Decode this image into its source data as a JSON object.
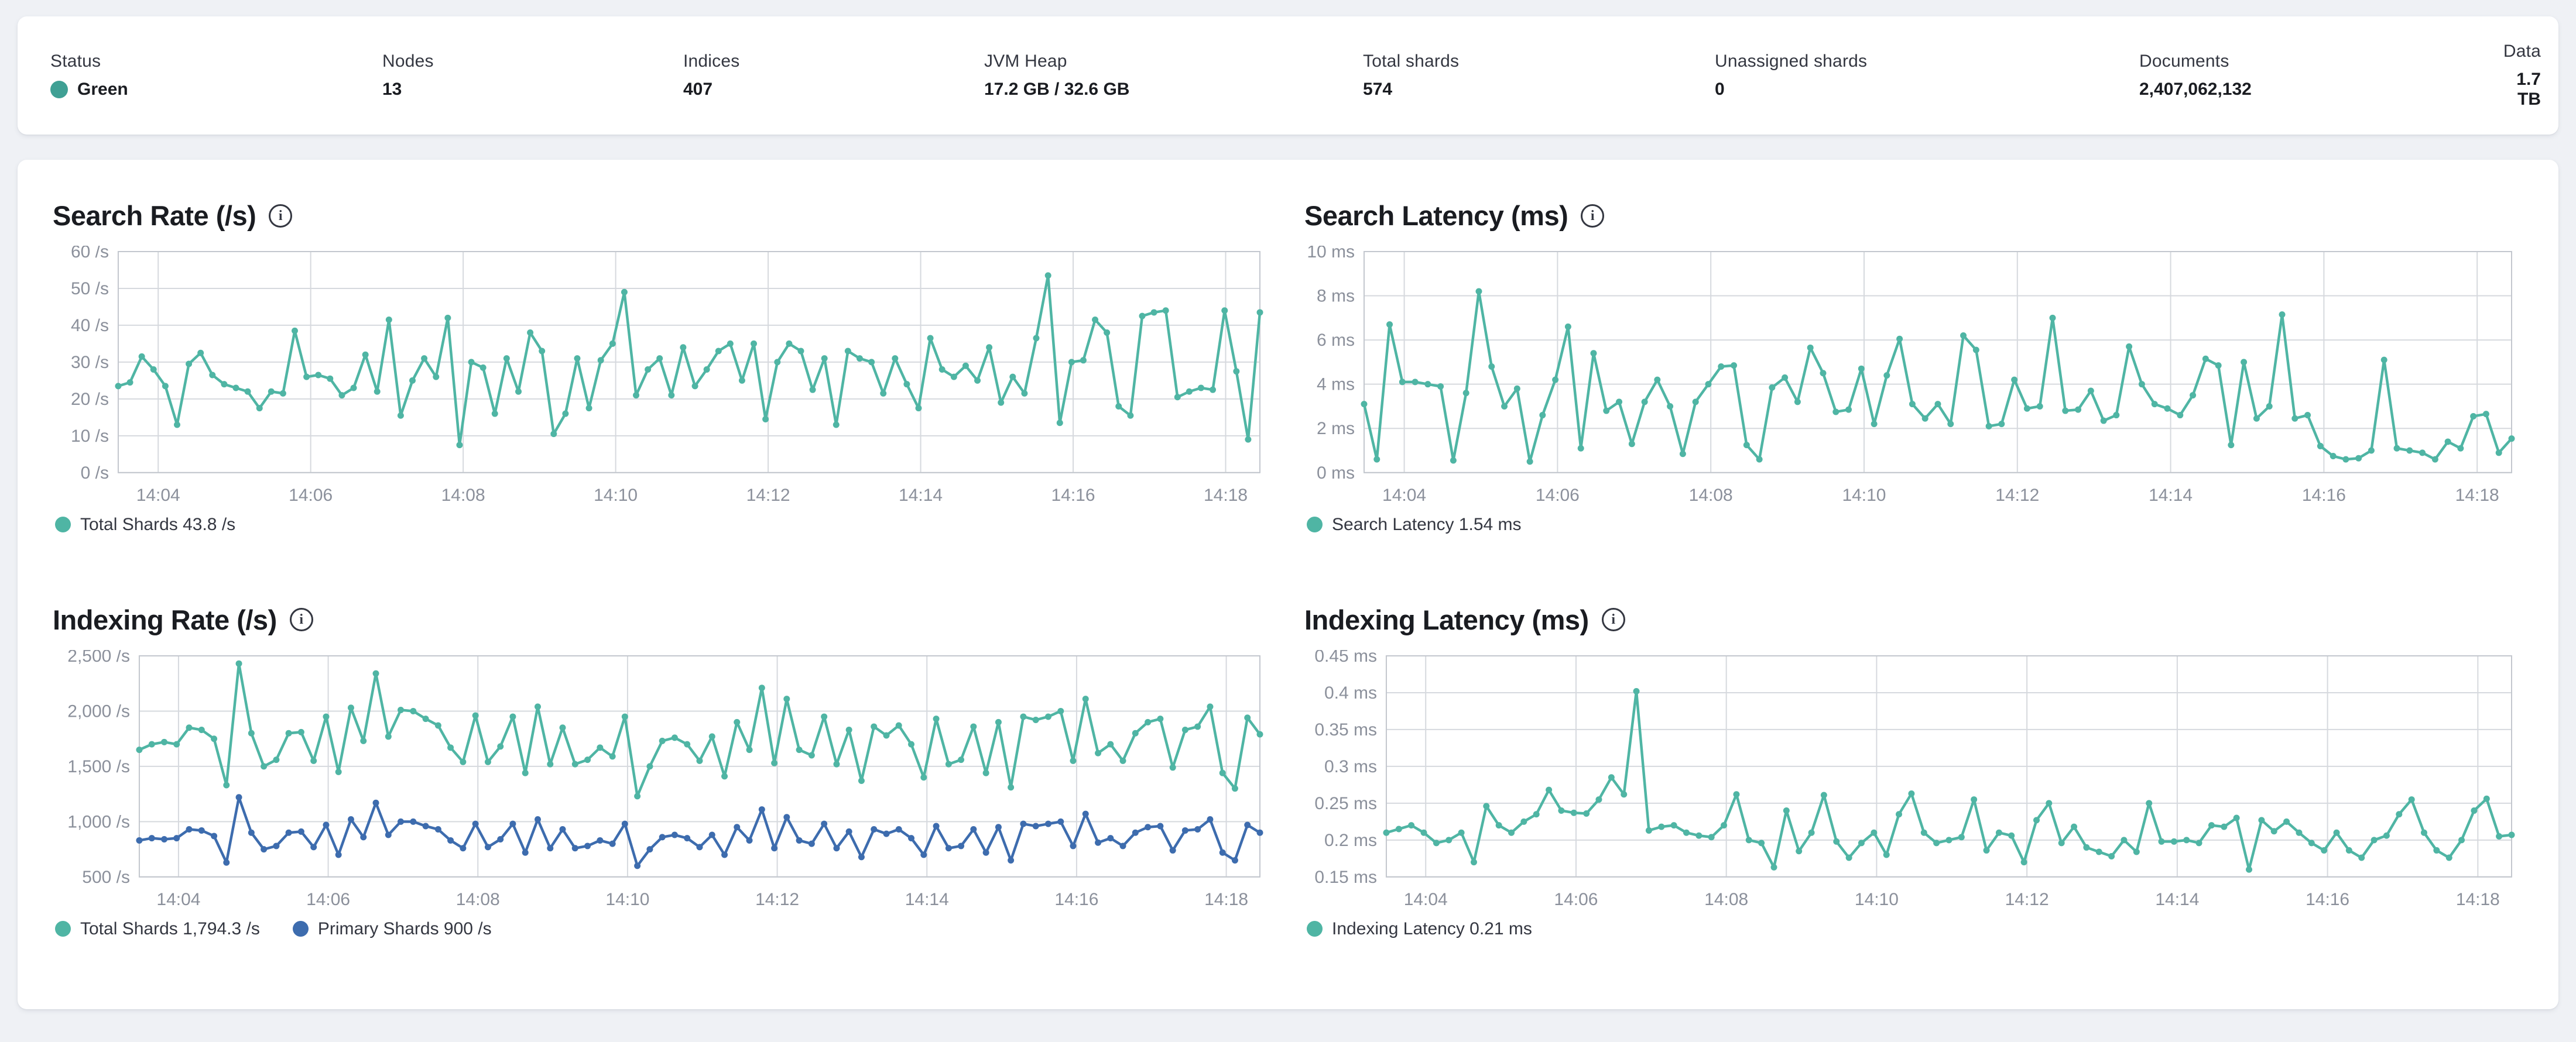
{
  "status_bar": {
    "items": [
      {
        "label": "Status",
        "value": "Green",
        "dot_color": "#3fa094"
      },
      {
        "label": "Nodes",
        "value": "13"
      },
      {
        "label": "Indices",
        "value": "407"
      },
      {
        "label": "JVM Heap",
        "value": "17.2 GB / 32.6 GB"
      },
      {
        "label": "Total shards",
        "value": "574"
      },
      {
        "label": "Unassigned shards",
        "value": "0"
      },
      {
        "label": "Documents",
        "value": "2,407,062,132"
      },
      {
        "label": "Data",
        "value": "1.7 TB"
      }
    ]
  },
  "icons": {
    "info_glyph": "i"
  },
  "colors": {
    "teal": "#4fb5a4",
    "blue": "#3d6cae",
    "grid": "#d6d9de",
    "tick_text": "#8b909b"
  },
  "chart_data": [
    {
      "type": "line",
      "title": "Search Rate (/s)",
      "grid": true,
      "legend_position": "bottom",
      "ylim": [
        0,
        60
      ],
      "y_ticks": [
        {
          "v": 0,
          "label": "0 /s"
        },
        {
          "v": 10,
          "label": "10 /s"
        },
        {
          "v": 20,
          "label": "20 /s"
        },
        {
          "v": 30,
          "label": "30 /s"
        },
        {
          "v": 40,
          "label": "40 /s"
        },
        {
          "v": 50,
          "label": "50 /s"
        },
        {
          "v": 60,
          "label": "60 /s"
        }
      ],
      "x_ticks": [
        "14:04",
        "14:06",
        "14:08",
        "14:10",
        "14:12",
        "14:14",
        "14:16",
        "14:18"
      ],
      "series": [
        {
          "name": "Total Shards",
          "legend": "Total Shards 43.8 /s",
          "color": "#4fb5a4",
          "values": [
            23.5,
            24.5,
            31.5,
            28,
            23.5,
            13,
            29.5,
            32.5,
            26.5,
            24,
            23,
            22,
            17.5,
            22,
            21.5,
            38.5,
            26,
            26.5,
            25.5,
            21,
            23,
            32,
            22,
            41.5,
            15.5,
            25,
            31,
            26,
            42,
            7.5,
            30,
            28.5,
            16,
            31,
            22,
            38,
            33,
            10.5,
            16,
            31,
            17.5,
            30.5,
            35,
            49,
            21,
            28,
            31,
            21,
            34,
            23.5,
            28,
            33,
            35,
            25,
            35,
            14.5,
            30,
            35,
            33,
            22.5,
            31,
            13,
            33,
            31,
            30,
            21.5,
            31,
            24,
            17.5,
            36.5,
            28,
            26,
            29,
            25,
            34,
            19,
            26,
            21.5,
            36.5,
            53.5,
            13.5,
            30,
            30.5,
            41.5,
            38,
            18,
            15.5,
            42.5,
            43.5,
            44,
            20.5,
            22,
            23,
            22.5,
            44,
            27.5,
            9,
            43.5
          ]
        }
      ]
    },
    {
      "type": "line",
      "title": "Search Latency (ms)",
      "grid": true,
      "legend_position": "bottom",
      "ylim": [
        0,
        10
      ],
      "y_ticks": [
        {
          "v": 0,
          "label": "0 ms"
        },
        {
          "v": 2,
          "label": "2 ms"
        },
        {
          "v": 4,
          "label": "4 ms"
        },
        {
          "v": 6,
          "label": "6 ms"
        },
        {
          "v": 8,
          "label": "8 ms"
        },
        {
          "v": 10,
          "label": "10 ms"
        }
      ],
      "x_ticks": [
        "14:04",
        "14:06",
        "14:08",
        "14:10",
        "14:12",
        "14:14",
        "14:16",
        "14:18"
      ],
      "series": [
        {
          "name": "Search Latency",
          "legend": "Search Latency 1.54 ms",
          "color": "#4fb5a4",
          "values": [
            3.1,
            0.6,
            6.7,
            4.1,
            4.1,
            4.0,
            3.9,
            0.55,
            3.6,
            8.2,
            4.8,
            3.0,
            3.8,
            0.5,
            2.6,
            4.2,
            6.6,
            1.1,
            5.4,
            2.8,
            3.2,
            1.3,
            3.2,
            4.2,
            3.0,
            0.85,
            3.2,
            4.0,
            4.8,
            4.85,
            1.25,
            0.6,
            3.85,
            4.3,
            3.2,
            5.65,
            4.5,
            2.75,
            2.85,
            4.7,
            2.2,
            4.4,
            6.05,
            3.1,
            2.45,
            3.1,
            2.2,
            6.2,
            5.55,
            2.1,
            2.2,
            4.2,
            2.9,
            3.0,
            7.0,
            2.8,
            2.85,
            3.7,
            2.35,
            2.6,
            5.7,
            4.0,
            3.1,
            2.9,
            2.6,
            3.5,
            5.15,
            4.85,
            1.25,
            5.0,
            2.45,
            3.0,
            7.15,
            2.45,
            2.6,
            1.2,
            0.75,
            0.6,
            0.65,
            1.0,
            5.1,
            1.1,
            1.0,
            0.9,
            0.6,
            1.4,
            1.1,
            2.55,
            2.65,
            0.9,
            1.54
          ]
        }
      ]
    },
    {
      "type": "line",
      "title": "Indexing Rate (/s)",
      "grid": true,
      "legend_position": "bottom",
      "ylim": [
        500,
        2500
      ],
      "y_ticks": [
        {
          "v": 500,
          "label": "500 /s"
        },
        {
          "v": 1000,
          "label": "1,000 /s"
        },
        {
          "v": 1500,
          "label": "1,500 /s"
        },
        {
          "v": 2000,
          "label": "2,000 /s"
        },
        {
          "v": 2500,
          "label": "2,500 /s"
        }
      ],
      "x_ticks": [
        "14:04",
        "14:06",
        "14:08",
        "14:10",
        "14:12",
        "14:14",
        "14:16",
        "14:18"
      ],
      "series": [
        {
          "name": "Total Shards",
          "legend": "Total Shards 1,794.3 /s",
          "color": "#4fb5a4",
          "values": [
            1650,
            1700,
            1720,
            1700,
            1850,
            1830,
            1750,
            1330,
            2430,
            1800,
            1500,
            1560,
            1800,
            1810,
            1550,
            1950,
            1450,
            2030,
            1730,
            2340,
            1770,
            2010,
            2000,
            1930,
            1870,
            1670,
            1540,
            1960,
            1540,
            1680,
            1950,
            1440,
            2040,
            1520,
            1850,
            1520,
            1560,
            1670,
            1590,
            1950,
            1230,
            1500,
            1730,
            1760,
            1700,
            1550,
            1770,
            1410,
            1900,
            1650,
            2210,
            1530,
            2110,
            1650,
            1600,
            1950,
            1520,
            1830,
            1370,
            1860,
            1780,
            1870,
            1700,
            1400,
            1930,
            1520,
            1560,
            1860,
            1440,
            1900,
            1310,
            1950,
            1920,
            1950,
            2000,
            1550,
            2110,
            1620,
            1700,
            1550,
            1800,
            1900,
            1930,
            1490,
            1830,
            1860,
            2040,
            1440,
            1300,
            1940,
            1790
          ]
        },
        {
          "name": "Primary Shards",
          "legend": "Primary Shards 900 /s",
          "color": "#3d6cae",
          "values": [
            830,
            850,
            840,
            850,
            930,
            920,
            870,
            630,
            1220,
            900,
            750,
            780,
            900,
            910,
            770,
            970,
            700,
            1020,
            860,
            1170,
            880,
            1000,
            1000,
            960,
            930,
            830,
            760,
            980,
            770,
            840,
            980,
            720,
            1020,
            760,
            930,
            760,
            780,
            830,
            800,
            980,
            600,
            750,
            860,
            880,
            850,
            770,
            880,
            700,
            950,
            830,
            1110,
            760,
            1040,
            830,
            800,
            980,
            760,
            910,
            680,
            930,
            890,
            930,
            850,
            700,
            960,
            760,
            780,
            930,
            720,
            950,
            650,
            980,
            960,
            980,
            1000,
            780,
            1070,
            810,
            850,
            780,
            900,
            950,
            960,
            740,
            920,
            930,
            1020,
            720,
            650,
            970,
            900
          ]
        }
      ]
    },
    {
      "type": "line",
      "title": "Indexing Latency (ms)",
      "grid": true,
      "legend_position": "bottom",
      "ylim": [
        0.15,
        0.45
      ],
      "y_ticks": [
        {
          "v": 0.15,
          "label": "0.15 ms"
        },
        {
          "v": 0.2,
          "label": "0.2 ms"
        },
        {
          "v": 0.25,
          "label": "0.25 ms"
        },
        {
          "v": 0.3,
          "label": "0.3 ms"
        },
        {
          "v": 0.35,
          "label": "0.35 ms"
        },
        {
          "v": 0.4,
          "label": "0.4 ms"
        },
        {
          "v": 0.45,
          "label": "0.45 ms"
        }
      ],
      "x_ticks": [
        "14:04",
        "14:06",
        "14:08",
        "14:10",
        "14:12",
        "14:14",
        "14:16",
        "14:18"
      ],
      "series": [
        {
          "name": "Indexing Latency",
          "legend": "Indexing Latency 0.21 ms",
          "color": "#4fb5a4",
          "values": [
            0.21,
            0.215,
            0.22,
            0.21,
            0.196,
            0.2,
            0.21,
            0.17,
            0.246,
            0.22,
            0.21,
            0.225,
            0.235,
            0.268,
            0.24,
            0.237,
            0.236,
            0.255,
            0.285,
            0.262,
            0.402,
            0.213,
            0.218,
            0.22,
            0.21,
            0.206,
            0.204,
            0.22,
            0.262,
            0.2,
            0.196,
            0.163,
            0.24,
            0.185,
            0.21,
            0.261,
            0.198,
            0.176,
            0.196,
            0.21,
            0.18,
            0.235,
            0.263,
            0.21,
            0.196,
            0.2,
            0.204,
            0.255,
            0.186,
            0.21,
            0.206,
            0.17,
            0.227,
            0.25,
            0.196,
            0.218,
            0.19,
            0.184,
            0.178,
            0.2,
            0.184,
            0.25,
            0.198,
            0.198,
            0.2,
            0.196,
            0.22,
            0.218,
            0.23,
            0.16,
            0.227,
            0.212,
            0.225,
            0.21,
            0.196,
            0.186,
            0.21,
            0.186,
            0.176,
            0.2,
            0.206,
            0.235,
            0.255,
            0.21,
            0.186,
            0.176,
            0.2,
            0.24,
            0.256,
            0.205,
            0.207
          ]
        }
      ]
    }
  ]
}
